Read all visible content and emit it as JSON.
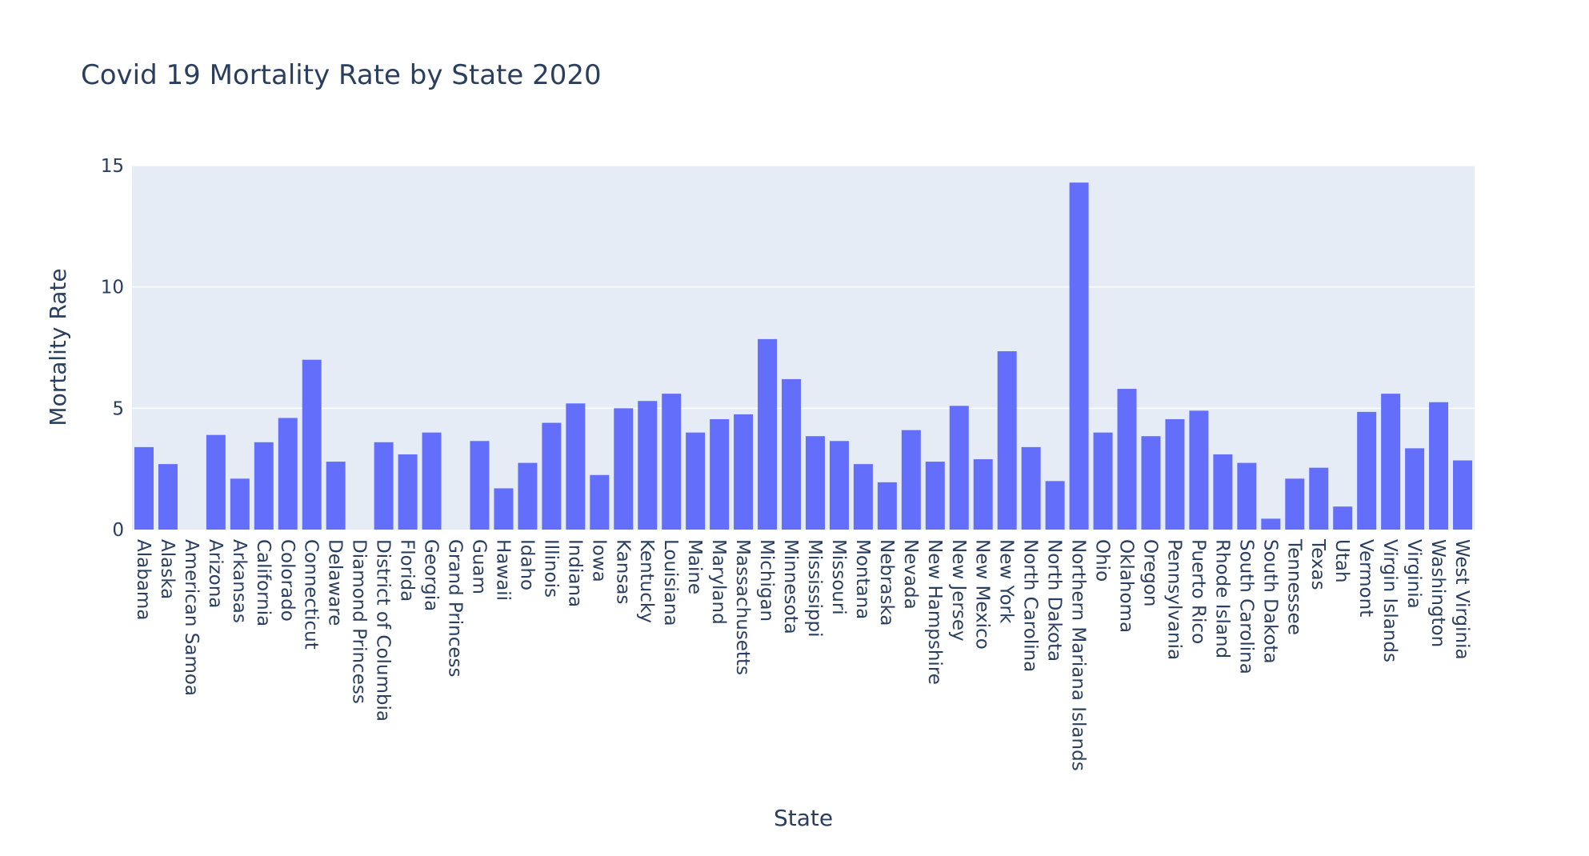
{
  "colors": {
    "bar": "#636efa",
    "plot_bg": "#e5ecf6",
    "grid": "#ffffff",
    "text": "#2a3f5f"
  },
  "chart_data": {
    "type": "bar",
    "title": "Covid 19 Mortality Rate by State 2020",
    "xlabel": "State",
    "ylabel": "Mortality Rate",
    "ylim": [
      0,
      15
    ],
    "yticks": [
      0,
      5,
      10,
      15
    ],
    "grid": true,
    "categories": [
      "Alabama",
      "Alaska",
      "American Samoa",
      "Arizona",
      "Arkansas",
      "California",
      "Colorado",
      "Connecticut",
      "Delaware",
      "Diamond Princess",
      "District of Columbia",
      "Florida",
      "Georgia",
      "Grand Princess",
      "Guam",
      "Hawaii",
      "Idaho",
      "Illinois",
      "Indiana",
      "Iowa",
      "Kansas",
      "Kentucky",
      "Louisiana",
      "Maine",
      "Maryland",
      "Massachusetts",
      "Michigan",
      "Minnesota",
      "Mississippi",
      "Missouri",
      "Montana",
      "Nebraska",
      "Nevada",
      "New Hampshire",
      "New Jersey",
      "New Mexico",
      "New York",
      "North Carolina",
      "North Dakota",
      "Northern Mariana Islands",
      "Ohio",
      "Oklahoma",
      "Oregon",
      "Pennsylvania",
      "Puerto Rico",
      "Rhode Island",
      "South Carolina",
      "South Dakota",
      "Tennessee",
      "Texas",
      "Utah",
      "Vermont",
      "Virgin Islands",
      "Virginia",
      "Washington",
      "West Virginia"
    ],
    "values": [
      3.4,
      2.7,
      0,
      3.9,
      2.1,
      3.6,
      4.6,
      7.0,
      2.8,
      0,
      3.6,
      3.1,
      4.0,
      0,
      3.65,
      1.7,
      2.75,
      4.4,
      5.2,
      2.25,
      5.0,
      5.3,
      5.6,
      4.0,
      4.55,
      4.75,
      7.85,
      6.2,
      3.85,
      3.65,
      2.7,
      1.95,
      4.1,
      2.8,
      5.1,
      2.9,
      7.35,
      3.4,
      2.0,
      14.3,
      4.0,
      5.8,
      3.85,
      4.55,
      4.9,
      3.1,
      2.75,
      0.45,
      2.1,
      2.55,
      0.95,
      4.85,
      5.6,
      3.35,
      5.25,
      2.85
    ]
  }
}
